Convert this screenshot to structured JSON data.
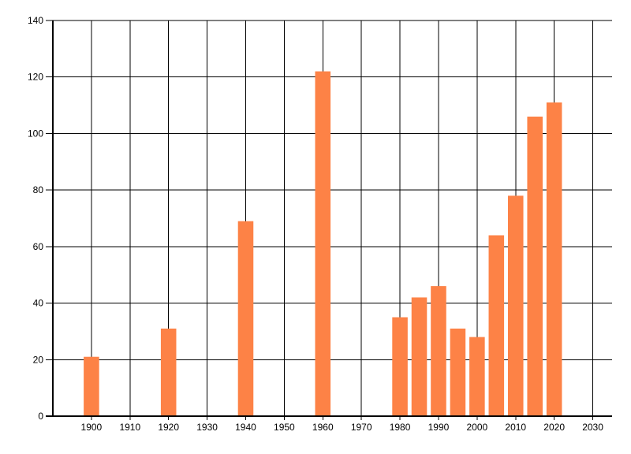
{
  "app": {
    "background_color": "#ffffff"
  },
  "chart_data": {
    "type": "bar",
    "title": "",
    "xlabel": "",
    "ylabel": "",
    "x": [
      1900,
      1920,
      1940,
      1960,
      1980,
      1985,
      1990,
      1995,
      2000,
      2005,
      2010,
      2015,
      2020
    ],
    "values": [
      21,
      31,
      69,
      122,
      35,
      42,
      46,
      31,
      28,
      64,
      78,
      106,
      111
    ],
    "xlim": [
      1890,
      2035
    ],
    "ylim": [
      0,
      140
    ],
    "x_ticks": [
      1900,
      1910,
      1920,
      1930,
      1940,
      1950,
      1960,
      1970,
      1980,
      1990,
      2000,
      2010,
      2020,
      2030
    ],
    "y_ticks": [
      0,
      20,
      40,
      60,
      80,
      100,
      120,
      140
    ],
    "bar_width_years": 4,
    "grid": true,
    "legend": "none",
    "bar_color": "#fd8246",
    "grid_color": "#000000",
    "axis_color": "#000000",
    "label_color": "#000000",
    "background_color": "#ffffff"
  }
}
